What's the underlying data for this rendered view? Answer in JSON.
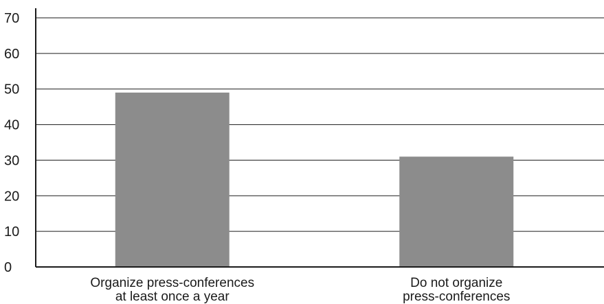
{
  "chart_data": {
    "type": "bar",
    "title": "",
    "xlabel": "",
    "ylabel": "",
    "categories": [
      [
        "Organize press-conferences",
        "at least once a year"
      ],
      [
        "Do not organize",
        "press-conferences"
      ]
    ],
    "values": [
      49,
      31
    ],
    "ylim": [
      0,
      70
    ],
    "yticks": [
      0,
      10,
      20,
      30,
      40,
      50,
      60,
      70
    ],
    "grid": true,
    "legend": "none",
    "bar_color": "#8c8c8c",
    "grid_color": "#1a1a1a",
    "axis_color": "#1a1a1a"
  }
}
